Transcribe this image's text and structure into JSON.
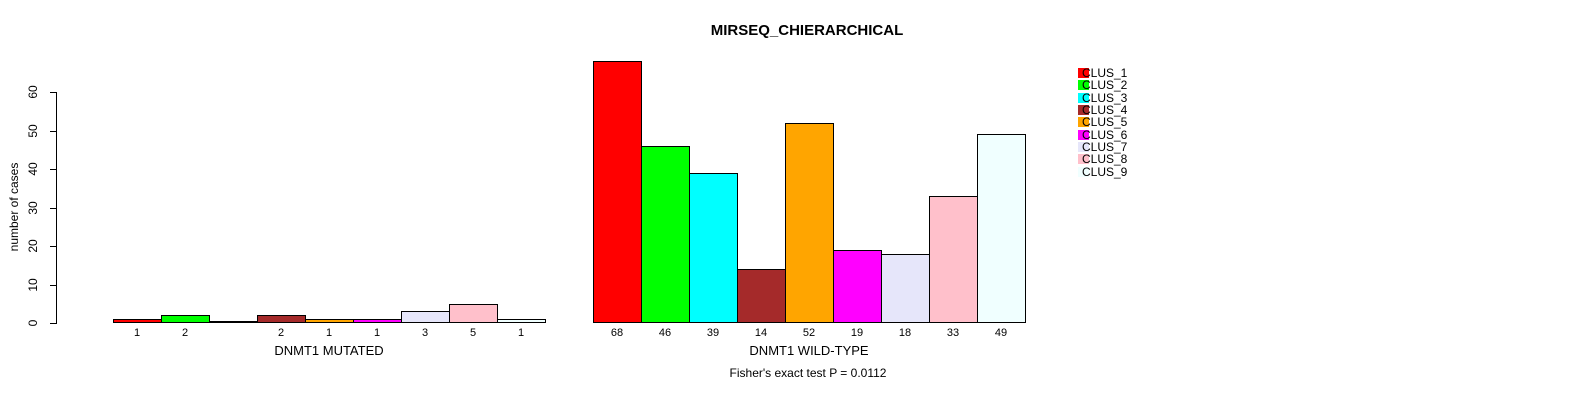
{
  "chart_data": {
    "type": "bar",
    "title": "MIRSEQ_CHIERARCHICAL",
    "ylabel": "number of cases",
    "xlabel": "",
    "annotation": "Fisher's exact test P = 0.0112",
    "categories": [
      "DNMT1 MUTATED",
      "DNMT1 WILD-TYPE"
    ],
    "series": [
      {
        "name": "CLUS_1",
        "color": "#FF0000",
        "values": [
          1,
          68
        ]
      },
      {
        "name": "CLUS_2",
        "color": "#00FF00",
        "values": [
          2,
          46
        ]
      },
      {
        "name": "CLUS_3",
        "color": "#00FFFF",
        "values": [
          0,
          39
        ]
      },
      {
        "name": "CLUS_4",
        "color": "#A52A2A",
        "values": [
          2,
          14
        ]
      },
      {
        "name": "CLUS_5",
        "color": "#FFA500",
        "values": [
          1,
          52
        ]
      },
      {
        "name": "CLUS_6",
        "color": "#FF00FF",
        "values": [
          1,
          19
        ]
      },
      {
        "name": "CLUS_7",
        "color": "#E6E6FA",
        "values": [
          3,
          18
        ]
      },
      {
        "name": "CLUS_8",
        "color": "#FFC0CB",
        "values": [
          5,
          33
        ]
      },
      {
        "name": "CLUS_9",
        "color": "#F0FFFF",
        "values": [
          1,
          49
        ]
      }
    ],
    "bar_value_labels_shown": true,
    "zero_value_labels_hidden": true,
    "ylim": [
      0,
      60
    ],
    "yticks": [
      0,
      10,
      20,
      30,
      40,
      50,
      60
    ],
    "grid": false,
    "legend_position": "top-right",
    "bar_border_color": "#000000",
    "background_color": "#ffffff"
  }
}
